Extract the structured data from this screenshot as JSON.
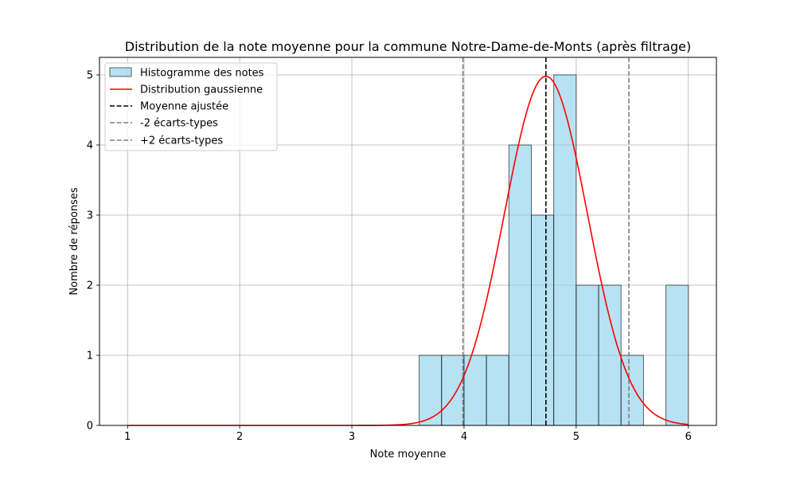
{
  "chart_data": {
    "type": "bar",
    "title": "Distribution de la note moyenne pour la commune Notre-Dame-de-Monts (après filtrage)",
    "xlabel": "Note moyenne",
    "ylabel": "Nombre de réponses",
    "xlim": [
      0.75,
      6.25
    ],
    "ylim": [
      0,
      5.25
    ],
    "xticks": [
      1,
      2,
      3,
      4,
      5,
      6
    ],
    "yticks": [
      0,
      1,
      2,
      3,
      4,
      5
    ],
    "grid": true,
    "legend_position": "top-left",
    "histogram": {
      "name": "Histogramme des notes",
      "bin_edges": [
        3.6,
        3.8,
        4.0,
        4.2,
        4.4,
        4.6,
        4.8,
        5.0,
        5.2,
        5.4,
        5.6,
        5.8,
        6.0
      ],
      "counts": [
        1,
        1,
        1,
        1,
        4,
        3,
        5,
        2,
        2,
        1,
        0,
        2
      ],
      "color": "#87ceeb"
    },
    "gaussian": {
      "name": "Distribution gaussienne",
      "mean": 4.73,
      "std": 0.37,
      "peak": 4.98,
      "x_range": [
        1,
        6
      ],
      "color": "#ff0000"
    },
    "lines": [
      {
        "name": "Moyenne ajustée",
        "x": 4.73,
        "color": "#000000"
      },
      {
        "name": "-2 écarts-types",
        "x": 3.99,
        "color": "#808080"
      },
      {
        "name": "+2 écarts-types",
        "x": 5.47,
        "color": "#808080"
      }
    ]
  }
}
